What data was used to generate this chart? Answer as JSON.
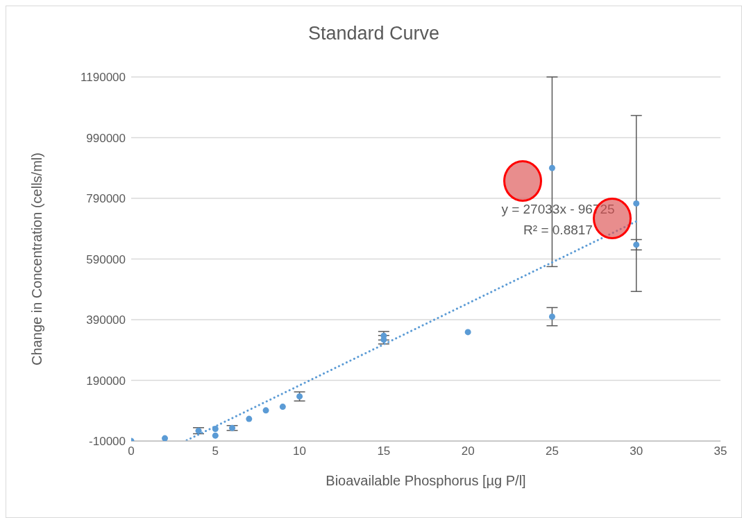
{
  "chart_data": {
    "type": "scatter",
    "title": "Standard Curve",
    "xlabel": "Bioavailable Phosphorus [µg P/l]",
    "ylabel": "Change in Concentration (cells/ml)",
    "xlim": [
      0,
      35
    ],
    "xticks": [
      0,
      5,
      10,
      15,
      20,
      25,
      30,
      35
    ],
    "ylim": [
      -10000,
      1190000
    ],
    "yticks": [
      -10000,
      190000,
      390000,
      590000,
      790000,
      990000,
      1190000
    ],
    "grid": "y",
    "annotations": [
      "y = 27033x - 96725",
      "R² = 0.8817"
    ],
    "series": [
      {
        "color": "#5b9bd5",
        "marker": "circle",
        "x": [
          0,
          2,
          4,
          5,
          5,
          6,
          7,
          8,
          9,
          10,
          15,
          15,
          20,
          25,
          25,
          30,
          30
        ],
        "values": [
          -10000,
          -1000,
          24000,
          30000,
          8000,
          33000,
          63000,
          91000,
          103000,
          137000,
          337000,
          324000,
          349000,
          890000,
          400000,
          773000,
          637000
        ],
        "errors": [
          null,
          null,
          10000,
          null,
          null,
          8000,
          null,
          null,
          null,
          15000,
          14000,
          14000,
          null,
          [
            565000,
            1190000
          ],
          30000,
          290000,
          17000
        ]
      },
      {
        "type": "line",
        "color": "#5b9bd5",
        "line_style": "dotted",
        "marker": "none",
        "x": [
          3.3,
          30
        ],
        "values": [
          -7500,
          714000
        ]
      }
    ]
  }
}
